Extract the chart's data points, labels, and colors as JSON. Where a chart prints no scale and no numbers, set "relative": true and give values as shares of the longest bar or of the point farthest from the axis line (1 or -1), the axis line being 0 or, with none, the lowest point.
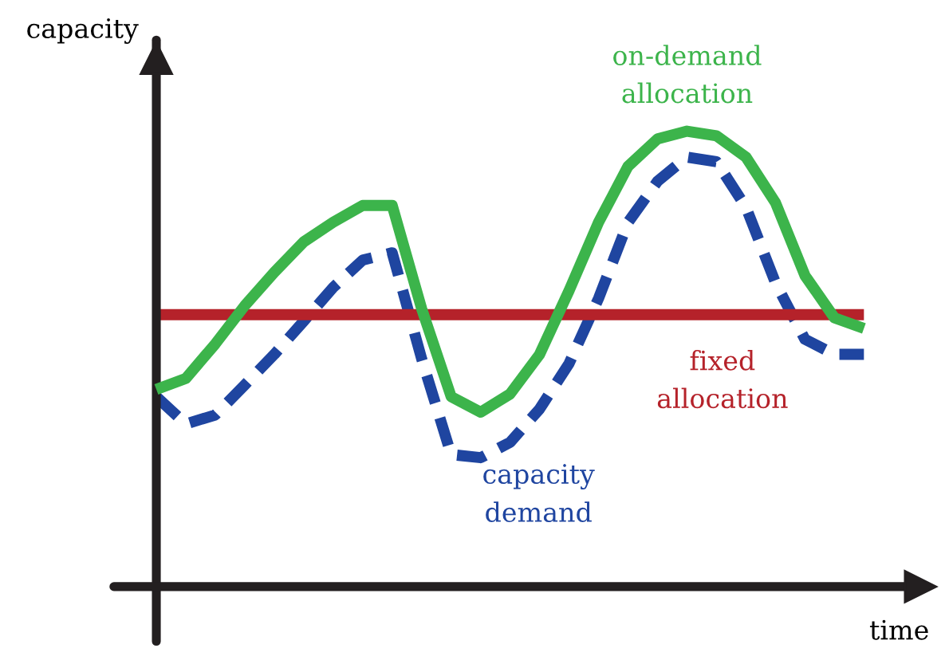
{
  "chart_data": {
    "type": "line",
    "relative": true,
    "xlabel": "time",
    "ylabel": "capacity",
    "legend": false,
    "categories": [
      null,
      null,
      null,
      null,
      null,
      null,
      null,
      null,
      null,
      null,
      null,
      null,
      null,
      null,
      null,
      null,
      null,
      null,
      null,
      null,
      null,
      null,
      null,
      null,
      null
    ],
    "series": [
      {
        "name": "on-demand allocation",
        "color": "#3cb44b",
        "line_style": "solid",
        "values": [
          0.433,
          0.457,
          0.533,
          0.617,
          0.69,
          0.757,
          0.8,
          0.837,
          0.837,
          0.61,
          0.417,
          0.383,
          0.423,
          0.51,
          0.65,
          0.8,
          0.923,
          0.983,
          1,
          0.99,
          0.943,
          0.843,
          0.683,
          0.59,
          0.567
        ]
      },
      {
        "name": "capacity demand",
        "color": "#1f45a0",
        "line_style": "dashed",
        "values": [
          0.417,
          0.357,
          0.377,
          0.443,
          0.51,
          0.583,
          0.657,
          0.717,
          0.733,
          0.5,
          0.29,
          0.283,
          0.317,
          0.39,
          0.49,
          0.633,
          0.8,
          0.89,
          0.943,
          0.933,
          0.833,
          0.667,
          0.543,
          0.51,
          0.51
        ]
      },
      {
        "name": "fixed allocation",
        "color": "#b5222a",
        "line_style": "solid",
        "values": [
          0.597,
          0.597,
          0.597,
          0.597,
          0.597,
          0.597,
          0.597,
          0.597,
          0.597,
          0.597,
          0.597,
          0.597,
          0.597,
          0.597,
          0.597,
          0.597,
          0.597,
          0.597,
          0.597,
          0.597,
          0.597,
          0.597,
          0.597,
          0.597,
          0.597
        ]
      }
    ]
  }
}
